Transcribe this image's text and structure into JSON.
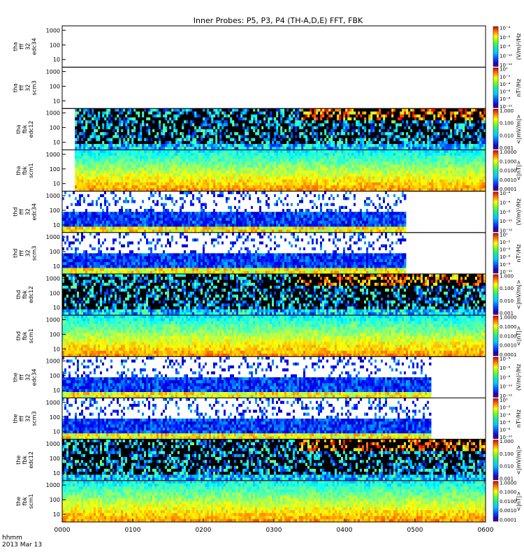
{
  "chart_data": {
    "type": "heatmap",
    "title": "Inner Probes: P5, P3, P4 (TH-A,D,E) FFT, FBK",
    "time_axis": {
      "label_line1": "hhmm",
      "label_line2": "2013 Mar 13",
      "ticks": [
        "0000",
        "0100",
        "0200",
        "0300",
        "0400",
        "0500",
        "0600"
      ],
      "range_hours": [
        0,
        6
      ]
    },
    "frequency_ticks": [
      "1000",
      "100",
      "10"
    ],
    "colorbar_ticks": {
      "efield_fft": [
        "10⁻⁴",
        "10⁻⁶",
        "10⁻⁸",
        "10⁻¹⁰",
        "10⁻¹²"
      ],
      "scm_fft": [
        "10⁰",
        "10⁻²",
        "10⁻⁴",
        "10⁻⁶",
        "10⁻⁸",
        "10⁻¹⁰"
      ],
      "efield_fbk": [
        "1.000",
        "0.100",
        "0.010",
        "0.001"
      ],
      "scm_fbk": [
        "1.0000",
        "0.1000",
        "0.0100",
        "0.0010",
        "0.0001"
      ]
    },
    "colorbar_labels": {
      "efield_fft": "(V/m)²/Hz",
      "scm_fft": "nT²/Hz",
      "efield_fbk": "<|mV/m|>",
      "scm_fbk": "<|nT|>"
    },
    "panels": [
      {
        "label": [
          "tha",
          "fff",
          "32",
          "edc34"
        ],
        "kind": "efield_fft",
        "data_start_hr": null,
        "data_end_hr": null
      },
      {
        "label": [
          "tha",
          "fff",
          "32",
          "scm3"
        ],
        "kind": "scm_fft",
        "data_start_hr": null,
        "data_end_hr": null
      },
      {
        "label": [
          "tha",
          "fbk",
          "edc12"
        ],
        "kind": "efield_fbk",
        "data_start_hr": 0.18,
        "data_end_hr": 6.0
      },
      {
        "label": [
          "tha",
          "fbk",
          "scm1"
        ],
        "kind": "scm_fbk",
        "data_start_hr": 0.18,
        "data_end_hr": 6.0
      },
      {
        "label": [
          "thd",
          "fff",
          "32",
          "edc34"
        ],
        "kind": "efield_fft",
        "data_start_hr": 0.0,
        "data_end_hr": 4.85
      },
      {
        "label": [
          "thd",
          "fff",
          "32",
          "scm3"
        ],
        "kind": "scm_fft",
        "data_start_hr": 0.0,
        "data_end_hr": 4.85
      },
      {
        "label": [
          "thd",
          "fbk",
          "edc12"
        ],
        "kind": "efield_fbk",
        "data_start_hr": 0.0,
        "data_end_hr": 6.0
      },
      {
        "label": [
          "thd",
          "fbk",
          "scm1"
        ],
        "kind": "scm_fbk",
        "data_start_hr": 0.0,
        "data_end_hr": 6.0
      },
      {
        "label": [
          "the",
          "fff",
          "32",
          "edc34"
        ],
        "kind": "efield_fft",
        "data_start_hr": 0.0,
        "data_end_hr": 5.2
      },
      {
        "label": [
          "the",
          "fff",
          "32",
          "scm3"
        ],
        "kind": "scm_fft",
        "data_start_hr": 0.0,
        "data_end_hr": 5.2
      },
      {
        "label": [
          "the",
          "fbk",
          "edc12"
        ],
        "kind": "efield_fbk",
        "data_start_hr": 0.0,
        "data_end_hr": 6.0
      },
      {
        "label": [
          "the",
          "fbk",
          "scm1"
        ],
        "kind": "scm_fbk",
        "data_start_hr": 0.0,
        "data_end_hr": 6.0
      }
    ]
  }
}
